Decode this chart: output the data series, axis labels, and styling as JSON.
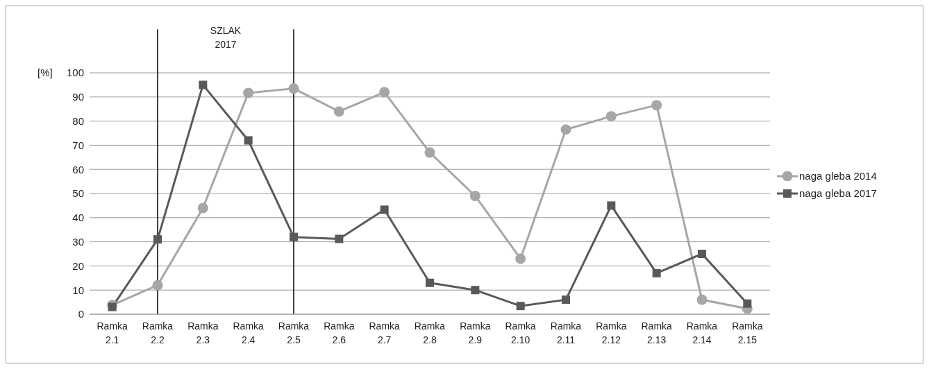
{
  "chart_data": {
    "type": "line",
    "ylabel": "[%]",
    "categories": [
      "Ramka 2.1",
      "Ramka 2.2",
      "Ramka 2.3",
      "Ramka 2.4",
      "Ramka 2.5",
      "Ramka 2.6",
      "Ramka 2.7",
      "Ramka 2.8",
      "Ramka 2.9",
      "Ramka 2.10",
      "Ramka 2.11",
      "Ramka 2.12",
      "Ramka 2.13",
      "Ramka 2.14",
      "Ramka 2.15"
    ],
    "series": [
      {
        "name": "naga gleba 2014",
        "color": "#a6a6a6",
        "marker": "circle",
        "values": [
          3.8,
          12,
          44,
          91.7,
          93.5,
          84,
          92,
          67,
          49,
          23,
          76.5,
          82,
          86.6,
          6,
          2.3
        ]
      },
      {
        "name": "naga gleba 2017",
        "color": "#595959",
        "marker": "square",
        "values": [
          3,
          31,
          95,
          72,
          32,
          31.2,
          43.3,
          13,
          10,
          3.4,
          6,
          45,
          17,
          25,
          4.4
        ]
      }
    ],
    "ylim": [
      0,
      100
    ],
    "yticks": [
      0,
      10,
      20,
      30,
      40,
      50,
      60,
      70,
      80,
      90,
      100
    ],
    "grid": "y",
    "legend": "right",
    "ref_lines": [
      {
        "axis": "x",
        "value": "Ramka 2.2",
        "color": "#000000"
      },
      {
        "axis": "x",
        "value": "Ramka 2.5",
        "color": "#000000"
      }
    ],
    "annotations": [
      "SZLAK 2017"
    ]
  }
}
